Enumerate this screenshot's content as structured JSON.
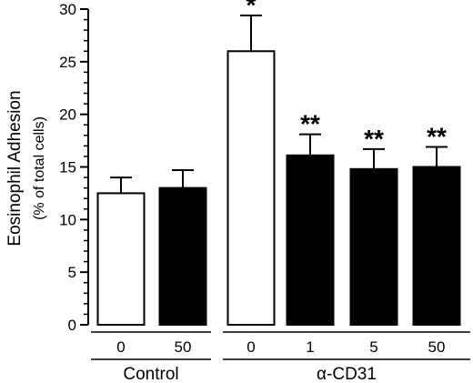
{
  "chart_data": {
    "type": "bar",
    "ylabel": "Eosinophil Adhesion",
    "ylabel_sub": "(% of total cells)",
    "ylim": [
      0,
      30
    ],
    "yticks": [
      0,
      5,
      10,
      15,
      20,
      25,
      30
    ],
    "y_minor_step": 1,
    "grid": false,
    "bars": [
      {
        "label": "0",
        "group": "Control",
        "value": 12.5,
        "error": 1.5,
        "fill": "#ffffff",
        "sig": ""
      },
      {
        "label": "50",
        "group": "Control",
        "value": 13.0,
        "error": 1.7,
        "fill": "#000000",
        "sig": ""
      },
      {
        "label": "0",
        "group": "α-CD31",
        "value": 26.0,
        "error": 3.4,
        "fill": "#ffffff",
        "sig": "*"
      },
      {
        "label": "1",
        "group": "α-CD31",
        "value": 16.1,
        "error": 2.0,
        "fill": "#000000",
        "sig": "**"
      },
      {
        "label": "5",
        "group": "α-CD31",
        "value": 14.8,
        "error": 1.9,
        "fill": "#000000",
        "sig": "**"
      },
      {
        "label": "50",
        "group": "α-CD31",
        "value": 15.0,
        "error": 1.9,
        "fill": "#000000",
        "sig": "**"
      }
    ],
    "groups": [
      "Control",
      "α-CD31"
    ]
  }
}
